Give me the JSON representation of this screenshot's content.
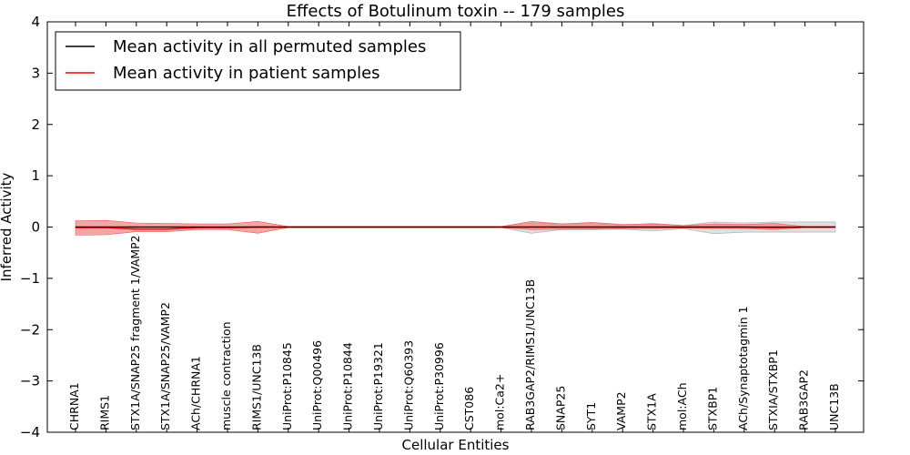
{
  "chart_data": {
    "type": "line",
    "title": "Effects of Botulinum toxin -- 179 samples",
    "xlabel": "Cellular Entities",
    "ylabel": "Inferred Activity",
    "ylim": [
      -4,
      4
    ],
    "yticks": [
      4,
      3,
      2,
      1,
      0,
      -1,
      -2,
      -3,
      -4
    ],
    "ytick_labels": [
      "4",
      "3",
      "2",
      "1",
      "0",
      "−1",
      "−2",
      "−3",
      "−4"
    ],
    "legend_position": "top-left",
    "categories": [
      "CHRNA1",
      "RIMS1",
      "STX1A/SNAP25 fragment 1/VAMP2",
      "STX1A/SNAP25/VAMP2",
      "ACh/CHRNA1",
      "muscle contraction",
      "RIMS1/UNC13B",
      "UniProt:P10845",
      "UniProt:Q00496",
      "UniProt:P10844",
      "UniProt:P19321",
      "UniProt:Q60393",
      "UniProt:P30996",
      "CST086",
      "mol:Ca2+",
      "RAB3GAP2/RIMS1/UNC13B",
      "SNAP25",
      "SYT1",
      "VAMP2",
      "STX1A",
      "mol:ACh",
      "STXBP1",
      "ACh/Synaptotagmin 1",
      "STXIA/STXBP1",
      "RAB3GAP2",
      "UNC13B"
    ],
    "series": [
      {
        "name": "Mean activity in all permuted samples",
        "color": "#000000",
        "values": [
          0,
          0,
          0,
          0,
          0,
          0,
          0,
          0,
          0,
          0,
          0,
          0,
          0,
          0,
          0,
          0,
          0,
          0,
          0,
          0,
          0,
          0,
          0,
          0,
          0,
          0
        ],
        "band_lower": [
          -0.02,
          -0.02,
          -0.02,
          -0.02,
          -0.02,
          -0.02,
          -0.02,
          -0.01,
          -0.01,
          -0.01,
          -0.01,
          -0.01,
          -0.01,
          -0.01,
          -0.01,
          -0.12,
          -0.05,
          -0.05,
          -0.04,
          -0.08,
          -0.03,
          -0.13,
          -0.1,
          -0.1,
          -0.1,
          -0.1
        ],
        "band_upper": [
          0.02,
          0.02,
          0.02,
          0.02,
          0.02,
          0.02,
          0.02,
          0.01,
          0.01,
          0.01,
          0.01,
          0.01,
          0.01,
          0.01,
          0.01,
          0.08,
          0.06,
          0.07,
          0.04,
          0.07,
          0.03,
          0.1,
          0.08,
          0.1,
          0.1,
          0.1
        ],
        "band_color": "#cccccc"
      },
      {
        "name": "Mean activity in patient samples",
        "color": "#ff0000",
        "values": [
          -0.01,
          -0.01,
          -0.04,
          -0.04,
          -0.01,
          -0.01,
          0,
          0,
          0,
          0,
          0,
          0,
          0,
          0,
          0,
          0,
          0,
          0,
          0,
          0,
          0,
          0,
          0,
          -0.01,
          0,
          0
        ],
        "band_lower": [
          -0.16,
          -0.15,
          -0.09,
          -0.09,
          -0.05,
          -0.05,
          -0.12,
          -0.01,
          -0.01,
          -0.01,
          -0.01,
          -0.01,
          -0.01,
          -0.01,
          -0.01,
          -0.05,
          -0.04,
          -0.04,
          -0.03,
          -0.03,
          -0.02,
          -0.03,
          -0.03,
          -0.05,
          -0.01,
          -0.01
        ],
        "band_upper": [
          0.12,
          0.13,
          0.08,
          0.07,
          0.06,
          0.06,
          0.11,
          0.01,
          0.01,
          0.01,
          0.01,
          0.01,
          0.01,
          0.01,
          0.01,
          0.11,
          0.06,
          0.09,
          0.05,
          0.06,
          0.03,
          0.06,
          0.05,
          0.07,
          0.01,
          0.01
        ],
        "band_color": "#f08080"
      }
    ]
  }
}
